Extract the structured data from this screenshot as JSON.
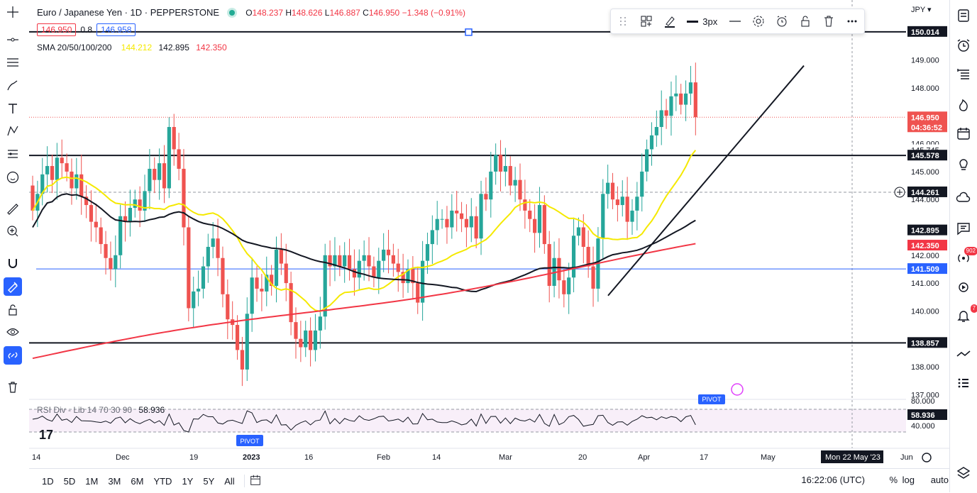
{
  "header": {
    "symbol": "Euro / Japanese Yen · 1D · PEPPERSTONE",
    "ohlc": {
      "o_label": "O",
      "o": "148.237",
      "h_label": "H",
      "h": "148.626",
      "l_label": "L",
      "l": "146.887",
      "c_label": "C",
      "c": "146.950",
      "change": "−1.348 (−0.91%)"
    },
    "bid": "146.950",
    "spread": "0.8",
    "ask": "146.958",
    "currency": "JPY"
  },
  "sma": {
    "label": "SMA 20/50/100/200",
    "v20": "144.212",
    "v50": "142.895",
    "v100": "142.350"
  },
  "rsi": {
    "label": "RSI Div - Lib 14 70 30 90",
    "value": "58.936"
  },
  "draw_toolbar": {
    "width_label": "3px"
  },
  "bottom": {
    "ranges": [
      "1D",
      "5D",
      "1M",
      "3M",
      "6M",
      "YTD",
      "1Y",
      "5Y",
      "All"
    ],
    "time": "16:22:06 (UTC)",
    "pct": "%",
    "log": "log",
    "auto": "auto"
  },
  "colors": {
    "up": "#26a69a",
    "down": "#ef5350",
    "sma20": "#f5e900",
    "sma50": "#131722",
    "sma100": "#f23645",
    "blue": "#2962ff"
  },
  "chart_data": {
    "type": "candlestick",
    "y_axis_ticks": [
      "149.000",
      "148.000",
      "146.000",
      "145.000",
      "144.000",
      "142.000",
      "141.000",
      "140.000",
      "138.000",
      "137.000"
    ],
    "price_labels": [
      {
        "value": "150.014",
        "kind": "line"
      },
      {
        "value": "146.950",
        "kind": "last"
      },
      {
        "value": "04:36:52",
        "kind": "countdown"
      },
      {
        "value": "145.745",
        "kind": "plain"
      },
      {
        "value": "145.578",
        "kind": "line"
      },
      {
        "value": "144.261",
        "kind": "cross"
      },
      {
        "value": "142.895",
        "kind": "sma50"
      },
      {
        "value": "142.350",
        "kind": "sma100"
      },
      {
        "value": "141.509",
        "kind": "blue"
      },
      {
        "value": "138.857",
        "kind": "line"
      }
    ],
    "rsi_ticks": [
      "80.000",
      "40.000"
    ],
    "rsi_value_label": "58.936",
    "x_labels": [
      "14",
      "Dec",
      "19",
      "2023",
      "16",
      "Feb",
      "14",
      "Mar",
      "20",
      "Apr",
      "17",
      "May",
      "Jun"
    ],
    "crosshair_date": "Mon 22 May '23",
    "pivot_label": "PIVOT",
    "horizontal_levels": [
      150.014,
      145.578,
      138.857,
      141.509
    ],
    "candles_close": [
      143.6,
      144.2,
      144.9,
      145.2,
      144.7,
      145.5,
      145.3,
      145.0,
      144.4,
      144.9,
      144.1,
      143.8,
      143.2,
      143.0,
      142.4,
      141.9,
      141.5,
      142.0,
      143.4,
      143.2,
      143.7,
      144.0,
      143.6,
      144.3,
      145.1,
      144.7,
      145.3,
      144.4,
      146.6,
      145.8,
      145.1,
      143.0,
      140.1,
      140.7,
      140.8,
      141.6,
      142.3,
      142.6,
      141.9,
      140.6,
      139.7,
      139.5,
      138.6,
      137.9,
      139.9,
      141.2,
      140.8,
      140.7,
      141.3,
      140.9,
      142.2,
      141.7,
      141.0,
      139.6,
      139.0,
      138.7,
      139.3,
      138.6,
      139.3,
      139.8,
      142.0,
      141.6,
      142.0,
      141.6,
      142.0,
      141.5,
      141.2,
      141.8,
      142.0,
      141.6,
      141.2,
      141.8,
      142.2,
      142.0,
      141.7,
      141.4,
      141.0,
      141.5,
      141.0,
      140.3,
      141.8,
      142.4,
      142.9,
      143.3,
      143.3,
      143.0,
      143.6,
      143.5,
      143.3,
      143.0,
      143.4,
      142.6,
      144.2,
      144.0,
      145.0,
      145.6,
      145.0,
      145.2,
      144.5,
      144.7,
      144.0,
      143.6,
      143.3,
      142.8,
      143.8,
      142.4,
      140.9,
      141.9,
      141.1,
      140.6,
      141.2,
      142.7,
      143.0,
      142.3,
      141.6,
      140.8,
      142.6,
      144.2,
      144.6,
      144.0,
      143.8,
      144.1,
      143.2,
      143.6,
      144.1,
      145.0,
      145.8,
      146.3,
      146.6,
      147.2,
      147.0,
      147.7,
      147.8,
      147.4,
      147.8,
      148.2,
      146.95
    ]
  }
}
